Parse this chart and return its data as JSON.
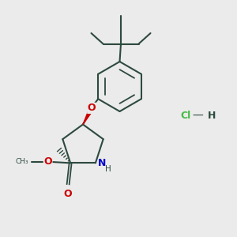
{
  "background_color": "#ebebeb",
  "bond_color": "#2d4a3e",
  "oxygen_color": "#cc0000",
  "nitrogen_color": "#0000cc",
  "hcl_color": "#44bb44",
  "figsize": [
    3.0,
    3.0
  ],
  "dpi": 100,
  "xlim": [
    0,
    10
  ],
  "ylim": [
    0,
    10
  ]
}
